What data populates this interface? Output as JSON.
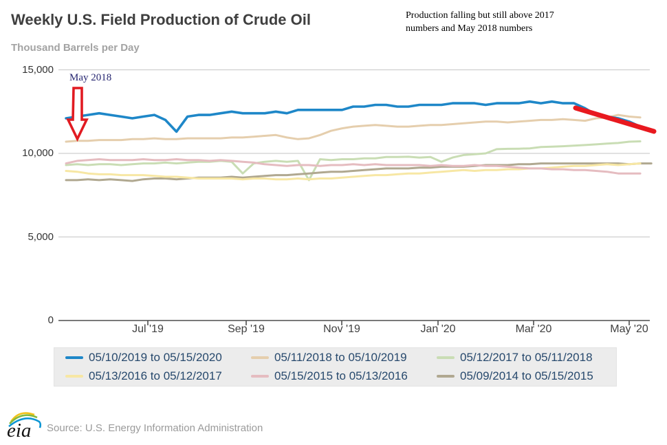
{
  "header": {
    "title": "Weekly U.S. Field Production of Crude Oil",
    "subtitle": "Thousand Barrels per Day"
  },
  "annotations": {
    "note_line1": "Production falling but still above 2017",
    "note_line2": "numbers and May 2018 numbers",
    "may_2018_label": "May 2018",
    "arrow_color": "#e11b22",
    "trend_line_color": "#e8191f"
  },
  "axes": {
    "y_ticks": [
      "15,000",
      "10,000",
      "5,000",
      "0"
    ],
    "x_ticks": [
      "Jul '19",
      "Sep '19",
      "Nov '19",
      "Jan '20",
      "Mar '20",
      "May '20"
    ]
  },
  "chart_data": {
    "type": "line",
    "title": "Weekly U.S. Field Production of Crude Oil",
    "ylabel": "Thousand Barrels per Day",
    "ylim": [
      0,
      15000
    ],
    "y_gridlines": [
      15000,
      10000,
      5000,
      0
    ],
    "x_unit": "weekly points, each series aligned by week-of-year (week 0 = mid-May)",
    "x_tick_labels": [
      "Jul '19",
      "Sep '19",
      "Nov '19",
      "Jan '20",
      "Mar '20",
      "May '20"
    ],
    "grid": "horizontal",
    "legend_position": "bottom",
    "series": [
      {
        "name": "05/10/2019 to 05/15/2020",
        "color": "#1e87c8",
        "width": 3.6,
        "values": [
          12100,
          12200,
          12300,
          12400,
          12300,
          12200,
          12100,
          12200,
          12300,
          12000,
          11300,
          12200,
          12300,
          12300,
          12400,
          12500,
          12400,
          12400,
          12400,
          12500,
          12400,
          12600,
          12600,
          12600,
          12600,
          12600,
          12800,
          12800,
          12900,
          12900,
          12800,
          12800,
          12900,
          12900,
          12900,
          13000,
          13000,
          13000,
          12900,
          13000,
          13000,
          13000,
          13100,
          13000,
          13100,
          13000,
          13000,
          12700,
          12300,
          12200,
          12100,
          11900,
          11600,
          11400
        ]
      },
      {
        "name": "05/11/2018 to 05/10/2019",
        "color": "#e5cead",
        "width": 3,
        "values": [
          10700,
          10750,
          10750,
          10800,
          10800,
          10800,
          10850,
          10850,
          10900,
          10850,
          10850,
          10900,
          10900,
          10900,
          10900,
          10950,
          10950,
          11000,
          11050,
          11100,
          10950,
          10850,
          10900,
          11100,
          11350,
          11500,
          11600,
          11650,
          11700,
          11650,
          11600,
          11600,
          11650,
          11700,
          11700,
          11750,
          11800,
          11850,
          11900,
          11900,
          11850,
          11900,
          11950,
          12000,
          12000,
          12050,
          12000,
          11950,
          12100,
          12150,
          12300,
          12200,
          12150
        ]
      },
      {
        "name": "05/12/2017 to 05/11/2018",
        "color": "#c9ddb4",
        "width": 3,
        "values": [
          9300,
          9350,
          9300,
          9350,
          9350,
          9300,
          9350,
          9400,
          9400,
          9450,
          9400,
          9450,
          9500,
          9500,
          9550,
          9500,
          8800,
          9400,
          9500,
          9550,
          9500,
          9550,
          8400,
          9650,
          9600,
          9650,
          9650,
          9700,
          9700,
          9780,
          9780,
          9800,
          9750,
          9780,
          9500,
          9750,
          9900,
          9950,
          10000,
          10250,
          10270,
          10280,
          10300,
          10380,
          10400,
          10430,
          10460,
          10500,
          10540,
          10590,
          10620,
          10700,
          10720
        ]
      },
      {
        "name": "05/13/2016 to 05/12/2017",
        "color": "#f7e7a4",
        "width": 3,
        "values": [
          8950,
          8900,
          8800,
          8750,
          8750,
          8700,
          8700,
          8700,
          8650,
          8600,
          8600,
          8550,
          8500,
          8500,
          8500,
          8500,
          8450,
          8500,
          8500,
          8450,
          8450,
          8500,
          8450,
          8500,
          8500,
          8550,
          8600,
          8650,
          8700,
          8700,
          8750,
          8800,
          8800,
          8850,
          8900,
          8950,
          9000,
          8950,
          9000,
          9000,
          9050,
          9050,
          9100,
          9100,
          9150,
          9200,
          9250,
          9250,
          9300,
          9350,
          9300,
          9350,
          9400
        ]
      },
      {
        "name": "05/15/2015 to 05/13/2016",
        "color": "#e5bcc0",
        "width": 3,
        "values": [
          9400,
          9550,
          9600,
          9650,
          9600,
          9600,
          9600,
          9650,
          9600,
          9600,
          9650,
          9600,
          9600,
          9550,
          9600,
          9550,
          9500,
          9450,
          9350,
          9300,
          9250,
          9300,
          9300,
          9250,
          9300,
          9300,
          9350,
          9300,
          9350,
          9300,
          9300,
          9300,
          9300,
          9250,
          9300,
          9250,
          9250,
          9300,
          9250,
          9250,
          9200,
          9150,
          9100,
          9100,
          9050,
          9050,
          9000,
          9000,
          8950,
          8900,
          8800,
          8800,
          8800
        ]
      },
      {
        "name": "05/09/2014 to 05/15/2015",
        "color": "#b0a890",
        "width": 3,
        "values": [
          8400,
          8400,
          8450,
          8400,
          8450,
          8400,
          8350,
          8450,
          8500,
          8500,
          8450,
          8500,
          8550,
          8550,
          8550,
          8600,
          8550,
          8600,
          8650,
          8700,
          8700,
          8750,
          8800,
          8850,
          8900,
          8900,
          8950,
          9000,
          9050,
          9100,
          9100,
          9100,
          9150,
          9150,
          9200,
          9200,
          9200,
          9250,
          9300,
          9300,
          9300,
          9350,
          9350,
          9400,
          9400,
          9400,
          9400,
          9400,
          9400,
          9400,
          9400,
          9350,
          9400,
          9400
        ]
      }
    ]
  },
  "legend": {
    "items": [
      {
        "label": "05/10/2019 to 05/15/2020",
        "color": "#1e87c8"
      },
      {
        "label": "05/11/2018 to 05/10/2019",
        "color": "#e5cead"
      },
      {
        "label": "05/12/2017 to 05/11/2018",
        "color": "#c9ddb4"
      },
      {
        "label": "05/13/2016 to 05/12/2017",
        "color": "#f7e7a4"
      },
      {
        "label": "05/15/2015 to 05/13/2016",
        "color": "#e5bcc0"
      },
      {
        "label": "05/09/2014 to 05/15/2015",
        "color": "#b0a890"
      }
    ]
  },
  "footer": {
    "logo_text": "eia",
    "source": "Source: U.S. Energy Information Administration"
  }
}
